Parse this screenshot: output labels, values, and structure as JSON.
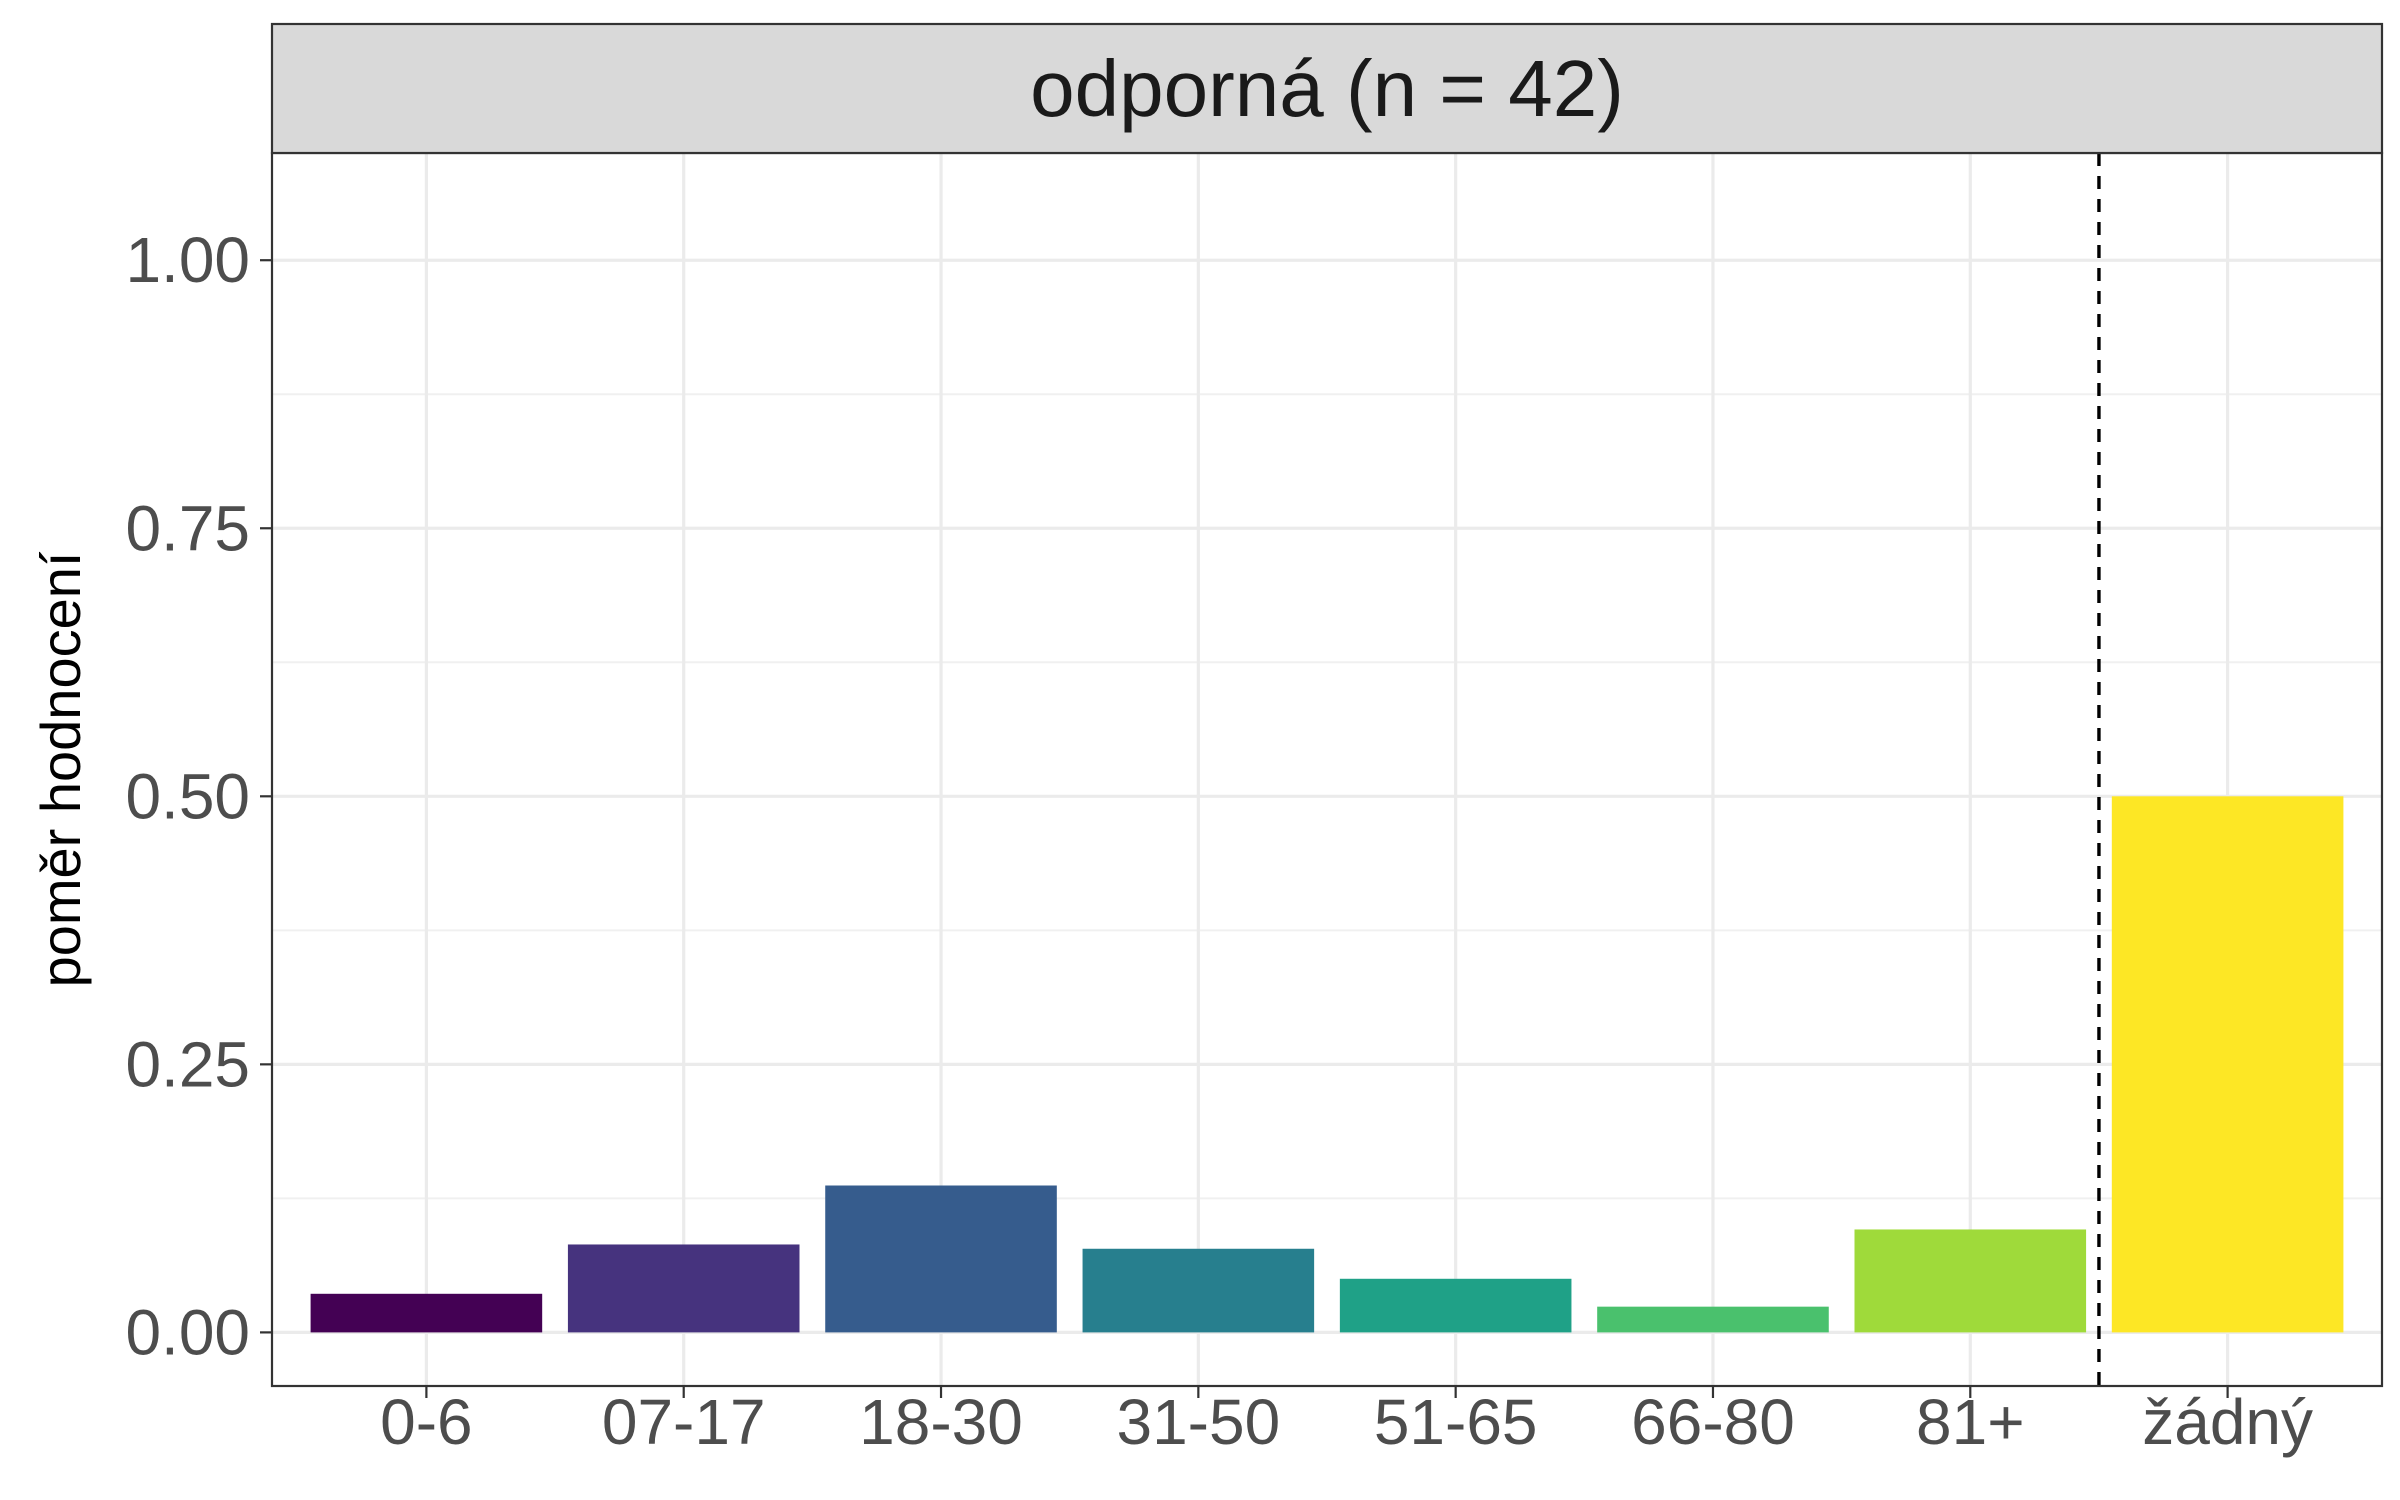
{
  "chart_data": {
    "type": "bar",
    "facet_title": "odporná (n = 42)",
    "xlabel": "",
    "ylabel": "poměr hodnocení",
    "categories": [
      "0-6",
      "07-17",
      "18-30",
      "31-50",
      "51-65",
      "66-80",
      "81+",
      "žádný"
    ],
    "values": [
      0.036,
      0.082,
      0.137,
      0.078,
      0.05,
      0.024,
      0.096,
      0.5
    ],
    "colors": [
      "#440154",
      "#46337E",
      "#365C8D",
      "#277F8E",
      "#1FA187",
      "#4AC16D",
      "#9FDA3A",
      "#FDE725"
    ],
    "ylim": [
      -0.05,
      1.1
    ],
    "yticks": [
      0.0,
      0.25,
      0.5,
      0.75,
      1.0
    ],
    "ytick_labels": [
      "0.00",
      "0.25",
      "0.50",
      "0.75",
      "1.00"
    ],
    "separator": {
      "style": "dashed",
      "between": [
        "81+",
        "žádný"
      ]
    },
    "grid": true,
    "legend": "none"
  }
}
